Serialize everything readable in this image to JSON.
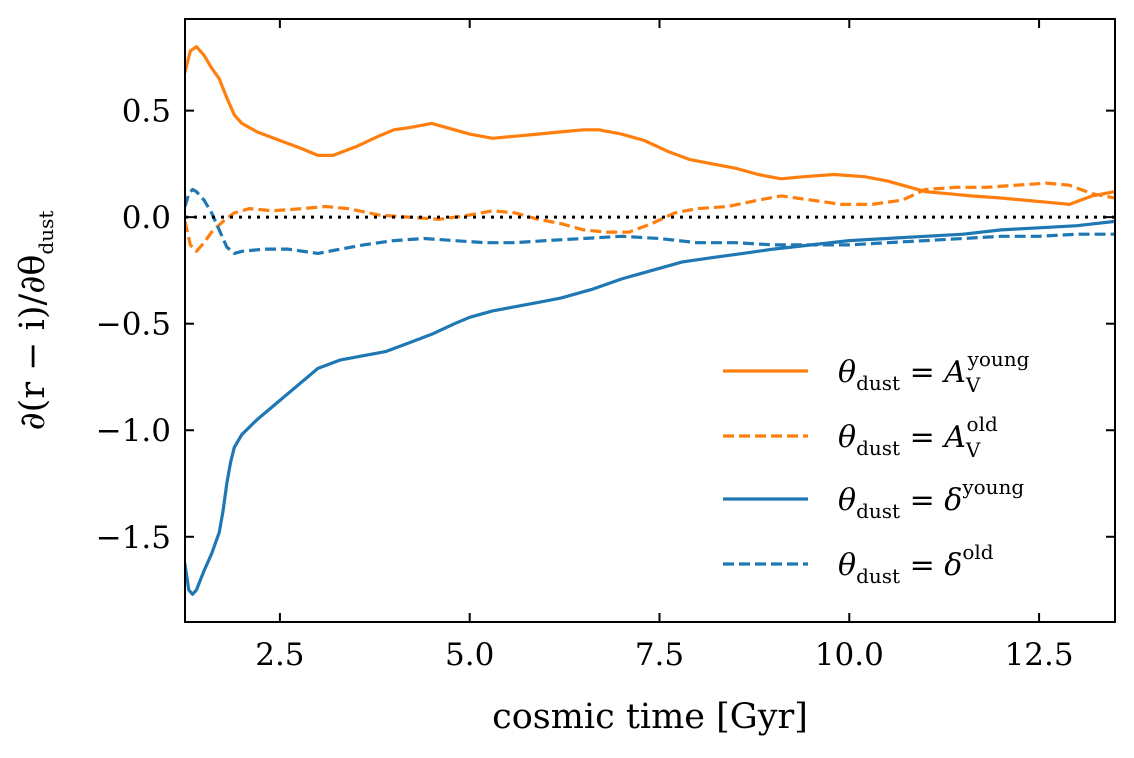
{
  "chart_data": {
    "type": "line",
    "xlabel": "cosmic time [Gyr]",
    "ylabel": "∂(r − i)/∂θ",
    "ylabel_sub": "dust",
    "xlim": [
      1.25,
      13.5
    ],
    "ylim": [
      -1.9,
      0.93
    ],
    "xticks": [
      2.5,
      5.0,
      7.5,
      10.0,
      12.5
    ],
    "xtick_labels": [
      "2.5",
      "5.0",
      "7.5",
      "10.0",
      "12.5"
    ],
    "yticks": [
      0.5,
      0.0,
      -0.5,
      -1.0,
      -1.5
    ],
    "ytick_labels": [
      "0.5",
      "0.0",
      "−0.5",
      "−1.0",
      "−1.5"
    ],
    "grid": false,
    "legend_position": "lower-right",
    "reference_line": {
      "y": 0.0,
      "style": "dotted",
      "color": "#000000"
    },
    "series": [
      {
        "name": "θdust = AVyoung",
        "label_main": "θ",
        "label_sub": "dust",
        "label_mid": " = A",
        "label_sub2": "V",
        "label_sup": "young",
        "color": "#ff7f0e",
        "dash": "solid",
        "x": [
          1.25,
          1.32,
          1.4,
          1.5,
          1.6,
          1.7,
          1.8,
          1.9,
          2.0,
          2.2,
          2.5,
          2.8,
          3.0,
          3.2,
          3.5,
          3.8,
          4.0,
          4.2,
          4.5,
          4.8,
          5.0,
          5.3,
          5.6,
          5.9,
          6.2,
          6.5,
          6.7,
          7.0,
          7.3,
          7.6,
          7.9,
          8.2,
          8.5,
          8.8,
          9.1,
          9.4,
          9.8,
          10.2,
          10.5,
          10.8,
          11.0,
          11.3,
          11.6,
          12.0,
          12.3,
          12.6,
          12.9,
          13.2,
          13.5
        ],
        "y": [
          0.68,
          0.78,
          0.8,
          0.76,
          0.7,
          0.65,
          0.56,
          0.48,
          0.44,
          0.4,
          0.36,
          0.32,
          0.29,
          0.29,
          0.33,
          0.38,
          0.41,
          0.42,
          0.44,
          0.41,
          0.39,
          0.37,
          0.38,
          0.39,
          0.4,
          0.41,
          0.41,
          0.39,
          0.36,
          0.31,
          0.27,
          0.25,
          0.23,
          0.2,
          0.18,
          0.19,
          0.2,
          0.19,
          0.17,
          0.14,
          0.12,
          0.11,
          0.1,
          0.09,
          0.08,
          0.07,
          0.06,
          0.1,
          0.12
        ]
      },
      {
        "name": "θdust = AVold",
        "label_main": "θ",
        "label_sub": "dust",
        "label_mid": " = A",
        "label_sub2": "V",
        "label_sup": "old",
        "color": "#ff7f0e",
        "dash": "dashed",
        "x": [
          1.25,
          1.32,
          1.4,
          1.5,
          1.6,
          1.75,
          1.9,
          2.1,
          2.4,
          2.8,
          3.1,
          3.4,
          3.8,
          4.2,
          4.6,
          5.0,
          5.3,
          5.6,
          5.9,
          6.2,
          6.5,
          6.8,
          7.1,
          7.4,
          7.7,
          8.0,
          8.4,
          8.8,
          9.1,
          9.5,
          9.9,
          10.3,
          10.7,
          11.0,
          11.4,
          11.8,
          12.2,
          12.6,
          12.9,
          13.2,
          13.5
        ],
        "y": [
          -0.02,
          -0.13,
          -0.16,
          -0.12,
          -0.07,
          -0.02,
          0.02,
          0.04,
          0.03,
          0.04,
          0.05,
          0.04,
          0.01,
          0.0,
          -0.01,
          0.01,
          0.03,
          0.02,
          -0.01,
          -0.03,
          -0.06,
          -0.07,
          -0.07,
          -0.03,
          0.02,
          0.04,
          0.05,
          0.08,
          0.1,
          0.08,
          0.06,
          0.06,
          0.08,
          0.13,
          0.14,
          0.14,
          0.15,
          0.16,
          0.15,
          0.11,
          0.09
        ]
      },
      {
        "name": "θdust = δyoung",
        "label_main": "θ",
        "label_sub": "dust",
        "label_mid": " = δ",
        "label_sub2": "",
        "label_sup": "young",
        "color": "#1f77b4",
        "dash": "solid",
        "x": [
          1.25,
          1.3,
          1.35,
          1.4,
          1.5,
          1.6,
          1.7,
          1.75,
          1.8,
          1.85,
          1.9,
          2.0,
          2.2,
          2.5,
          2.8,
          3.0,
          3.3,
          3.6,
          3.9,
          4.2,
          4.5,
          4.8,
          5.0,
          5.3,
          5.6,
          5.9,
          6.2,
          6.6,
          7.0,
          7.4,
          7.8,
          8.2,
          8.6,
          9.0,
          9.5,
          10.0,
          10.5,
          11.0,
          11.5,
          12.0,
          12.5,
          13.0,
          13.5
        ],
        "y": [
          -1.63,
          -1.75,
          -1.77,
          -1.75,
          -1.66,
          -1.58,
          -1.48,
          -1.38,
          -1.25,
          -1.15,
          -1.08,
          -1.02,
          -0.95,
          -0.86,
          -0.77,
          -0.71,
          -0.67,
          -0.65,
          -0.63,
          -0.59,
          -0.55,
          -0.5,
          -0.47,
          -0.44,
          -0.42,
          -0.4,
          -0.38,
          -0.34,
          -0.29,
          -0.25,
          -0.21,
          -0.19,
          -0.17,
          -0.15,
          -0.13,
          -0.11,
          -0.1,
          -0.09,
          -0.08,
          -0.06,
          -0.05,
          -0.04,
          -0.02
        ]
      },
      {
        "name": "θdust = δold",
        "label_main": "θ",
        "label_sub": "dust",
        "label_mid": " = δ",
        "label_sub2": "",
        "label_sup": "old",
        "color": "#1f77b4",
        "dash": "dashed",
        "x": [
          1.25,
          1.3,
          1.35,
          1.4,
          1.5,
          1.6,
          1.7,
          1.8,
          1.9,
          2.0,
          2.3,
          2.6,
          3.0,
          3.3,
          3.6,
          4.0,
          4.4,
          4.8,
          5.2,
          5.6,
          6.0,
          6.5,
          7.0,
          7.5,
          8.0,
          8.5,
          9.0,
          9.5,
          10.0,
          10.5,
          11.0,
          11.5,
          12.0,
          12.5,
          13.0,
          13.5
        ],
        "y": [
          0.05,
          0.11,
          0.13,
          0.12,
          0.08,
          0.02,
          -0.06,
          -0.14,
          -0.17,
          -0.16,
          -0.15,
          -0.15,
          -0.17,
          -0.15,
          -0.13,
          -0.11,
          -0.1,
          -0.11,
          -0.12,
          -0.12,
          -0.11,
          -0.1,
          -0.09,
          -0.1,
          -0.12,
          -0.12,
          -0.13,
          -0.13,
          -0.13,
          -0.12,
          -0.11,
          -0.1,
          -0.09,
          -0.09,
          -0.08,
          -0.08
        ]
      }
    ]
  }
}
